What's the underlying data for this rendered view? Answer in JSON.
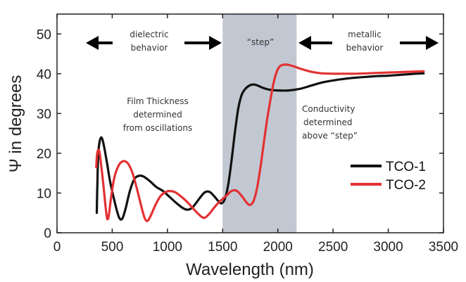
{
  "chart_data": {
    "type": "line",
    "xlabel": "Wavelength (nm)",
    "ylabel": "Ψ in degrees",
    "xlim": [
      0,
      3500
    ],
    "ylim": [
      0,
      55
    ],
    "x_ticks": [
      "0",
      "500",
      "1000",
      "1500",
      "2000",
      "2500",
      "3000",
      "3500"
    ],
    "y_ticks": [
      "0",
      "10",
      "20",
      "30",
      "40",
      "50"
    ],
    "grid": false,
    "legend_position": "right",
    "shaded_region": {
      "x_start": 1500,
      "x_end": 2170,
      "color": "#c2c8d2"
    },
    "annotations": {
      "dielectric": [
        "dielectric",
        "behavior"
      ],
      "step": "“step”",
      "metallic": [
        "metallic",
        "behavior"
      ],
      "film": [
        "Film Thickness",
        "determined",
        "from oscillations"
      ],
      "conductivity": [
        "Conductivity",
        "determined",
        "above “step”"
      ]
    },
    "series": [
      {
        "name": "TCO-1",
        "color": "#111111",
        "points": [
          [
            360,
            5
          ],
          [
            365,
            12
          ],
          [
            372,
            19
          ],
          [
            383,
            22.5
          ],
          [
            400,
            24
          ],
          [
            420,
            22.5
          ],
          [
            450,
            18
          ],
          [
            480,
            13
          ],
          [
            520,
            8
          ],
          [
            560,
            4
          ],
          [
            590,
            3.5
          ],
          [
            620,
            6
          ],
          [
            660,
            10.5
          ],
          [
            700,
            13.5
          ],
          [
            740,
            14.3
          ],
          [
            780,
            14.2
          ],
          [
            840,
            13
          ],
          [
            900,
            11.5
          ],
          [
            960,
            10.5
          ],
          [
            1020,
            9
          ],
          [
            1080,
            7.5
          ],
          [
            1140,
            6.2
          ],
          [
            1180,
            5.8
          ],
          [
            1220,
            6.2
          ],
          [
            1260,
            7.5
          ],
          [
            1300,
            9
          ],
          [
            1340,
            10.2
          ],
          [
            1380,
            10.3
          ],
          [
            1420,
            9.3
          ],
          [
            1460,
            8
          ],
          [
            1490,
            7.4
          ],
          [
            1520,
            8.5
          ],
          [
            1550,
            12
          ],
          [
            1580,
            18
          ],
          [
            1610,
            25
          ],
          [
            1640,
            31
          ],
          [
            1670,
            34.5
          ],
          [
            1700,
            36
          ],
          [
            1740,
            37
          ],
          [
            1780,
            37.3
          ],
          [
            1820,
            37
          ],
          [
            1860,
            36.5
          ],
          [
            1920,
            36
          ],
          [
            2000,
            35.8
          ],
          [
            2100,
            35.8
          ],
          [
            2200,
            36.2
          ],
          [
            2300,
            37
          ],
          [
            2400,
            37.8
          ],
          [
            2500,
            38.3
          ],
          [
            2600,
            38.7
          ],
          [
            2700,
            39
          ],
          [
            2800,
            39.2
          ],
          [
            2900,
            39.4
          ],
          [
            3000,
            39.5
          ],
          [
            3100,
            39.7
          ],
          [
            3200,
            39.9
          ],
          [
            3320,
            40.1
          ]
        ]
      },
      {
        "name": "TCO-2",
        "color": "#e33133",
        "points": [
          [
            355,
            16.5
          ],
          [
            362,
            19.5
          ],
          [
            372,
            20.8
          ],
          [
            385,
            20.3
          ],
          [
            400,
            17
          ],
          [
            420,
            12
          ],
          [
            440,
            6.5
          ],
          [
            455,
            3.5
          ],
          [
            470,
            4.5
          ],
          [
            490,
            9
          ],
          [
            520,
            14
          ],
          [
            560,
            17
          ],
          [
            600,
            18
          ],
          [
            640,
            17.5
          ],
          [
            680,
            15.3
          ],
          [
            720,
            11.5
          ],
          [
            760,
            7
          ],
          [
            790,
            4
          ],
          [
            810,
            3
          ],
          [
            830,
            3.3
          ],
          [
            860,
            5
          ],
          [
            900,
            7.5
          ],
          [
            940,
            9.3
          ],
          [
            980,
            10.2
          ],
          [
            1020,
            10.5
          ],
          [
            1070,
            10.2
          ],
          [
            1120,
            9.2
          ],
          [
            1170,
            8
          ],
          [
            1220,
            6.5
          ],
          [
            1270,
            5
          ],
          [
            1310,
            4
          ],
          [
            1340,
            3.8
          ],
          [
            1380,
            4.8
          ],
          [
            1420,
            6.2
          ],
          [
            1460,
            7.5
          ],
          [
            1500,
            8.5
          ],
          [
            1540,
            9.5
          ],
          [
            1580,
            10.5
          ],
          [
            1610,
            10.7
          ],
          [
            1640,
            10.3
          ],
          [
            1680,
            9
          ],
          [
            1720,
            7.5
          ],
          [
            1750,
            7
          ],
          [
            1780,
            8
          ],
          [
            1810,
            11
          ],
          [
            1840,
            16
          ],
          [
            1870,
            22
          ],
          [
            1900,
            28
          ],
          [
            1930,
            33
          ],
          [
            1960,
            37.5
          ],
          [
            1990,
            40.5
          ],
          [
            2020,
            41.9
          ],
          [
            2060,
            42.3
          ],
          [
            2100,
            42.2
          ],
          [
            2150,
            41.8
          ],
          [
            2200,
            41.3
          ],
          [
            2260,
            40.8
          ],
          [
            2320,
            40.4
          ],
          [
            2400,
            40.1
          ],
          [
            2500,
            40
          ],
          [
            2600,
            40
          ],
          [
            2700,
            40
          ],
          [
            2800,
            40.1
          ],
          [
            2900,
            40.2
          ],
          [
            3000,
            40.3
          ],
          [
            3100,
            40.4
          ],
          [
            3200,
            40.5
          ],
          [
            3320,
            40.6
          ]
        ]
      }
    ]
  }
}
